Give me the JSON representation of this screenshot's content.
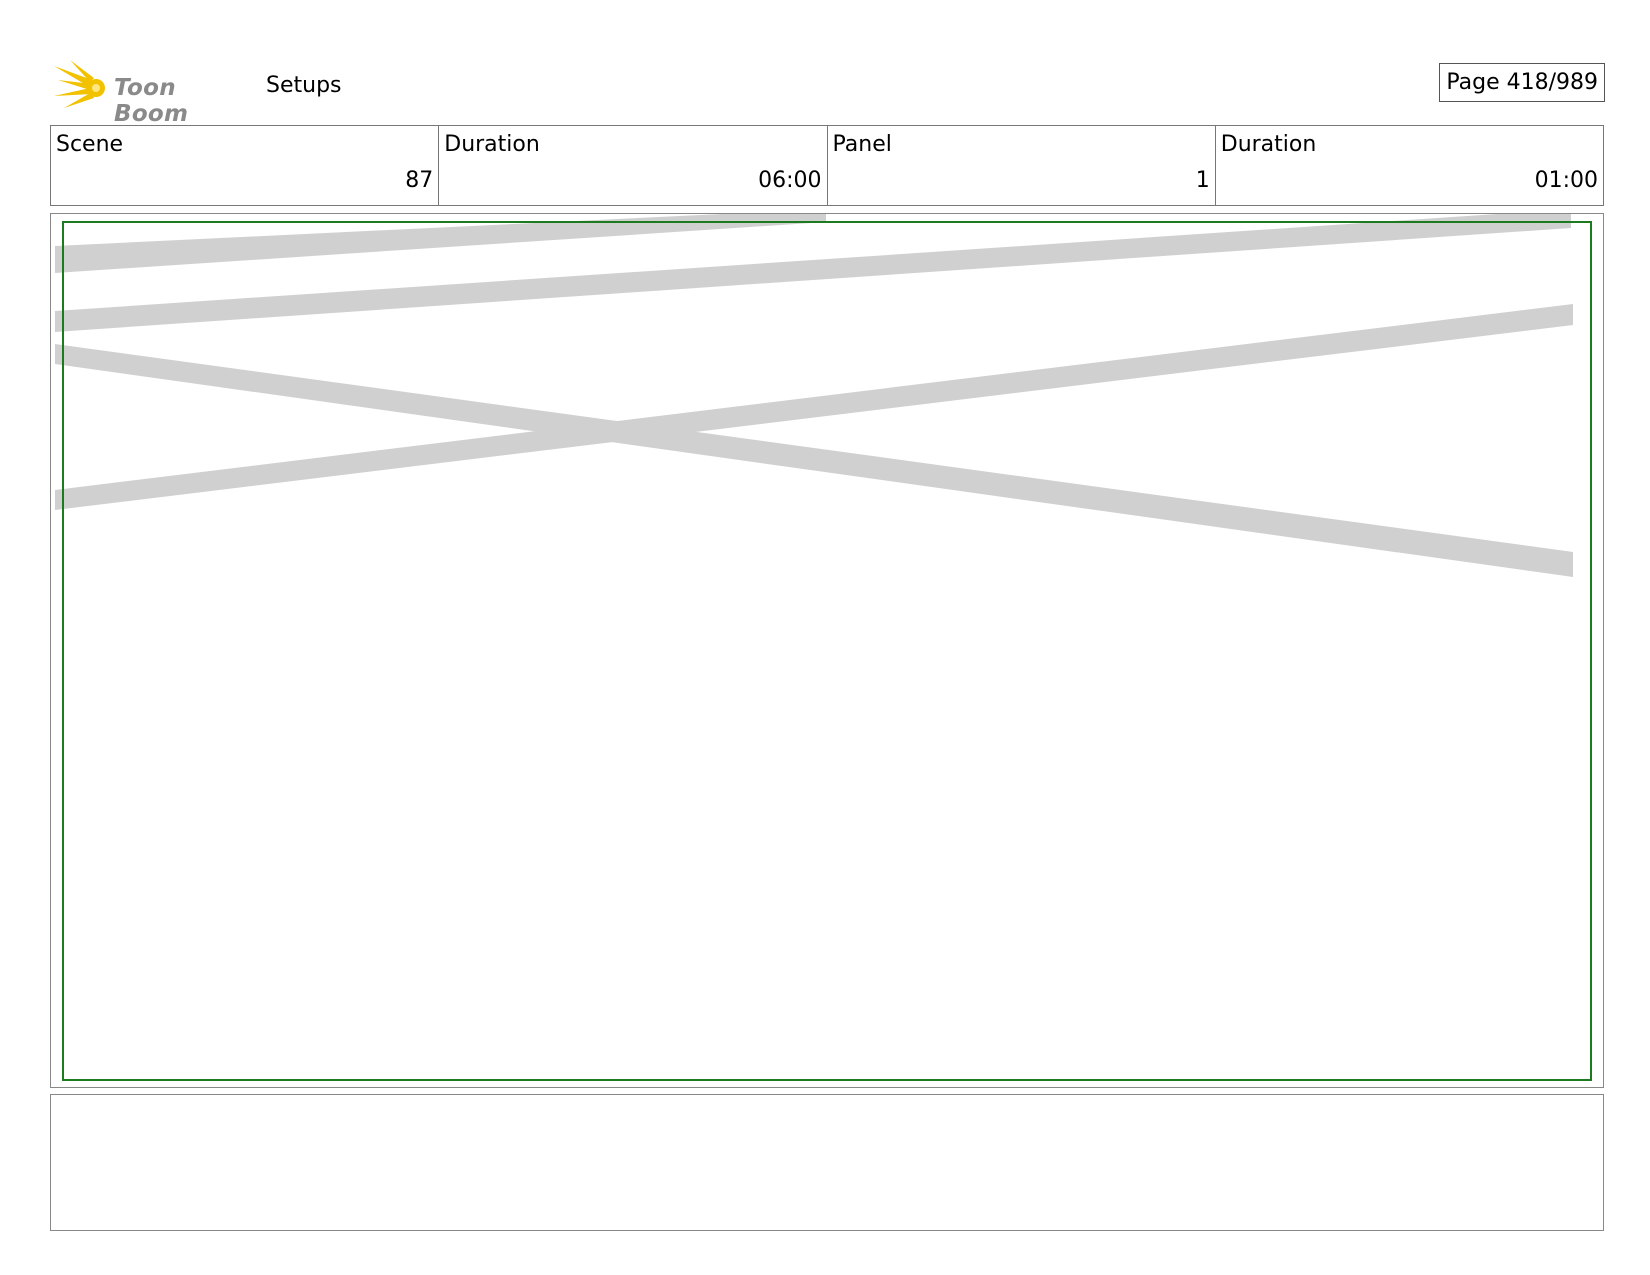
{
  "header": {
    "brand": "Toon Boom",
    "logo_icon": "toon-boom-burst-icon",
    "title": "Setups",
    "page_label": "Page 418/989"
  },
  "info": {
    "scene": {
      "label": "Scene",
      "value": "87"
    },
    "scene_duration": {
      "label": "Duration",
      "value": "06:00"
    },
    "panel": {
      "label": "Panel",
      "value": "1"
    },
    "panel_duration": {
      "label": "Duration",
      "value": "01:00"
    }
  },
  "colors": {
    "safe_frame": "#1e7a1e",
    "strokes": "#d0d0d0",
    "logo_burst": "#f2c200"
  },
  "notes": {
    "text": ""
  }
}
